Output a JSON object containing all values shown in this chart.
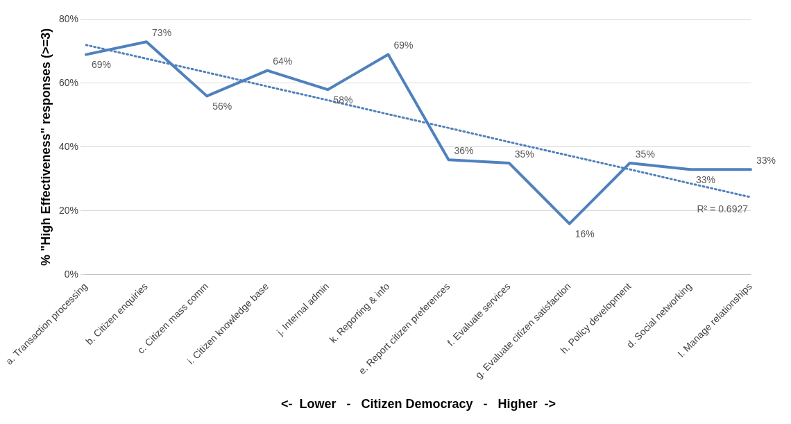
{
  "chart_data": {
    "type": "line",
    "ylabel": "% \"High Effectiveness\" responses (>=3)",
    "xlabel": "<-  Lower   -   Citizen Democracy   -   Higher  ->",
    "categories": [
      "a. Transaction processing",
      "b. Citizen enquiries",
      "c. Citizen mass comm",
      "i. Citizen knowledge base",
      "j. Internal admin",
      "k. Reporting & info",
      "e. Report citizen preferences",
      "f. Evaluate services",
      "g. Evaluate citizen satisfaction",
      "h. Policy development",
      "d. Social networking",
      "l. Manage relationships"
    ],
    "series": [
      {
        "color": "#4f81bd",
        "values": [
          69,
          73,
          56,
          64,
          58,
          69,
          36,
          35,
          16,
          35,
          33,
          33
        ],
        "value_labels": [
          "69%",
          "73%",
          "56%",
          "64%",
          "58%",
          "69%",
          "36%",
          "35%",
          "16%",
          "35%",
          "33%",
          "33%"
        ]
      },
      {
        "type": "line",
        "line_style": "dotted",
        "color": "#4f81bd",
        "values": [
          72.0,
          67.7,
          63.4,
          59.0,
          54.7,
          50.3,
          46.0,
          41.6,
          37.3,
          33.0,
          28.6,
          24.3
        ]
      }
    ],
    "ylim": [
      0,
      80
    ],
    "yticks": [
      {
        "value": 0,
        "label": "0%"
      },
      {
        "value": 20,
        "label": "20%"
      },
      {
        "value": 40,
        "label": "40%"
      },
      {
        "value": 60,
        "label": "60%"
      },
      {
        "value": 80,
        "label": "80%"
      }
    ],
    "grid": "y",
    "legend": false,
    "marker": "none",
    "annotations": [
      "R² = 0.6927"
    ]
  }
}
